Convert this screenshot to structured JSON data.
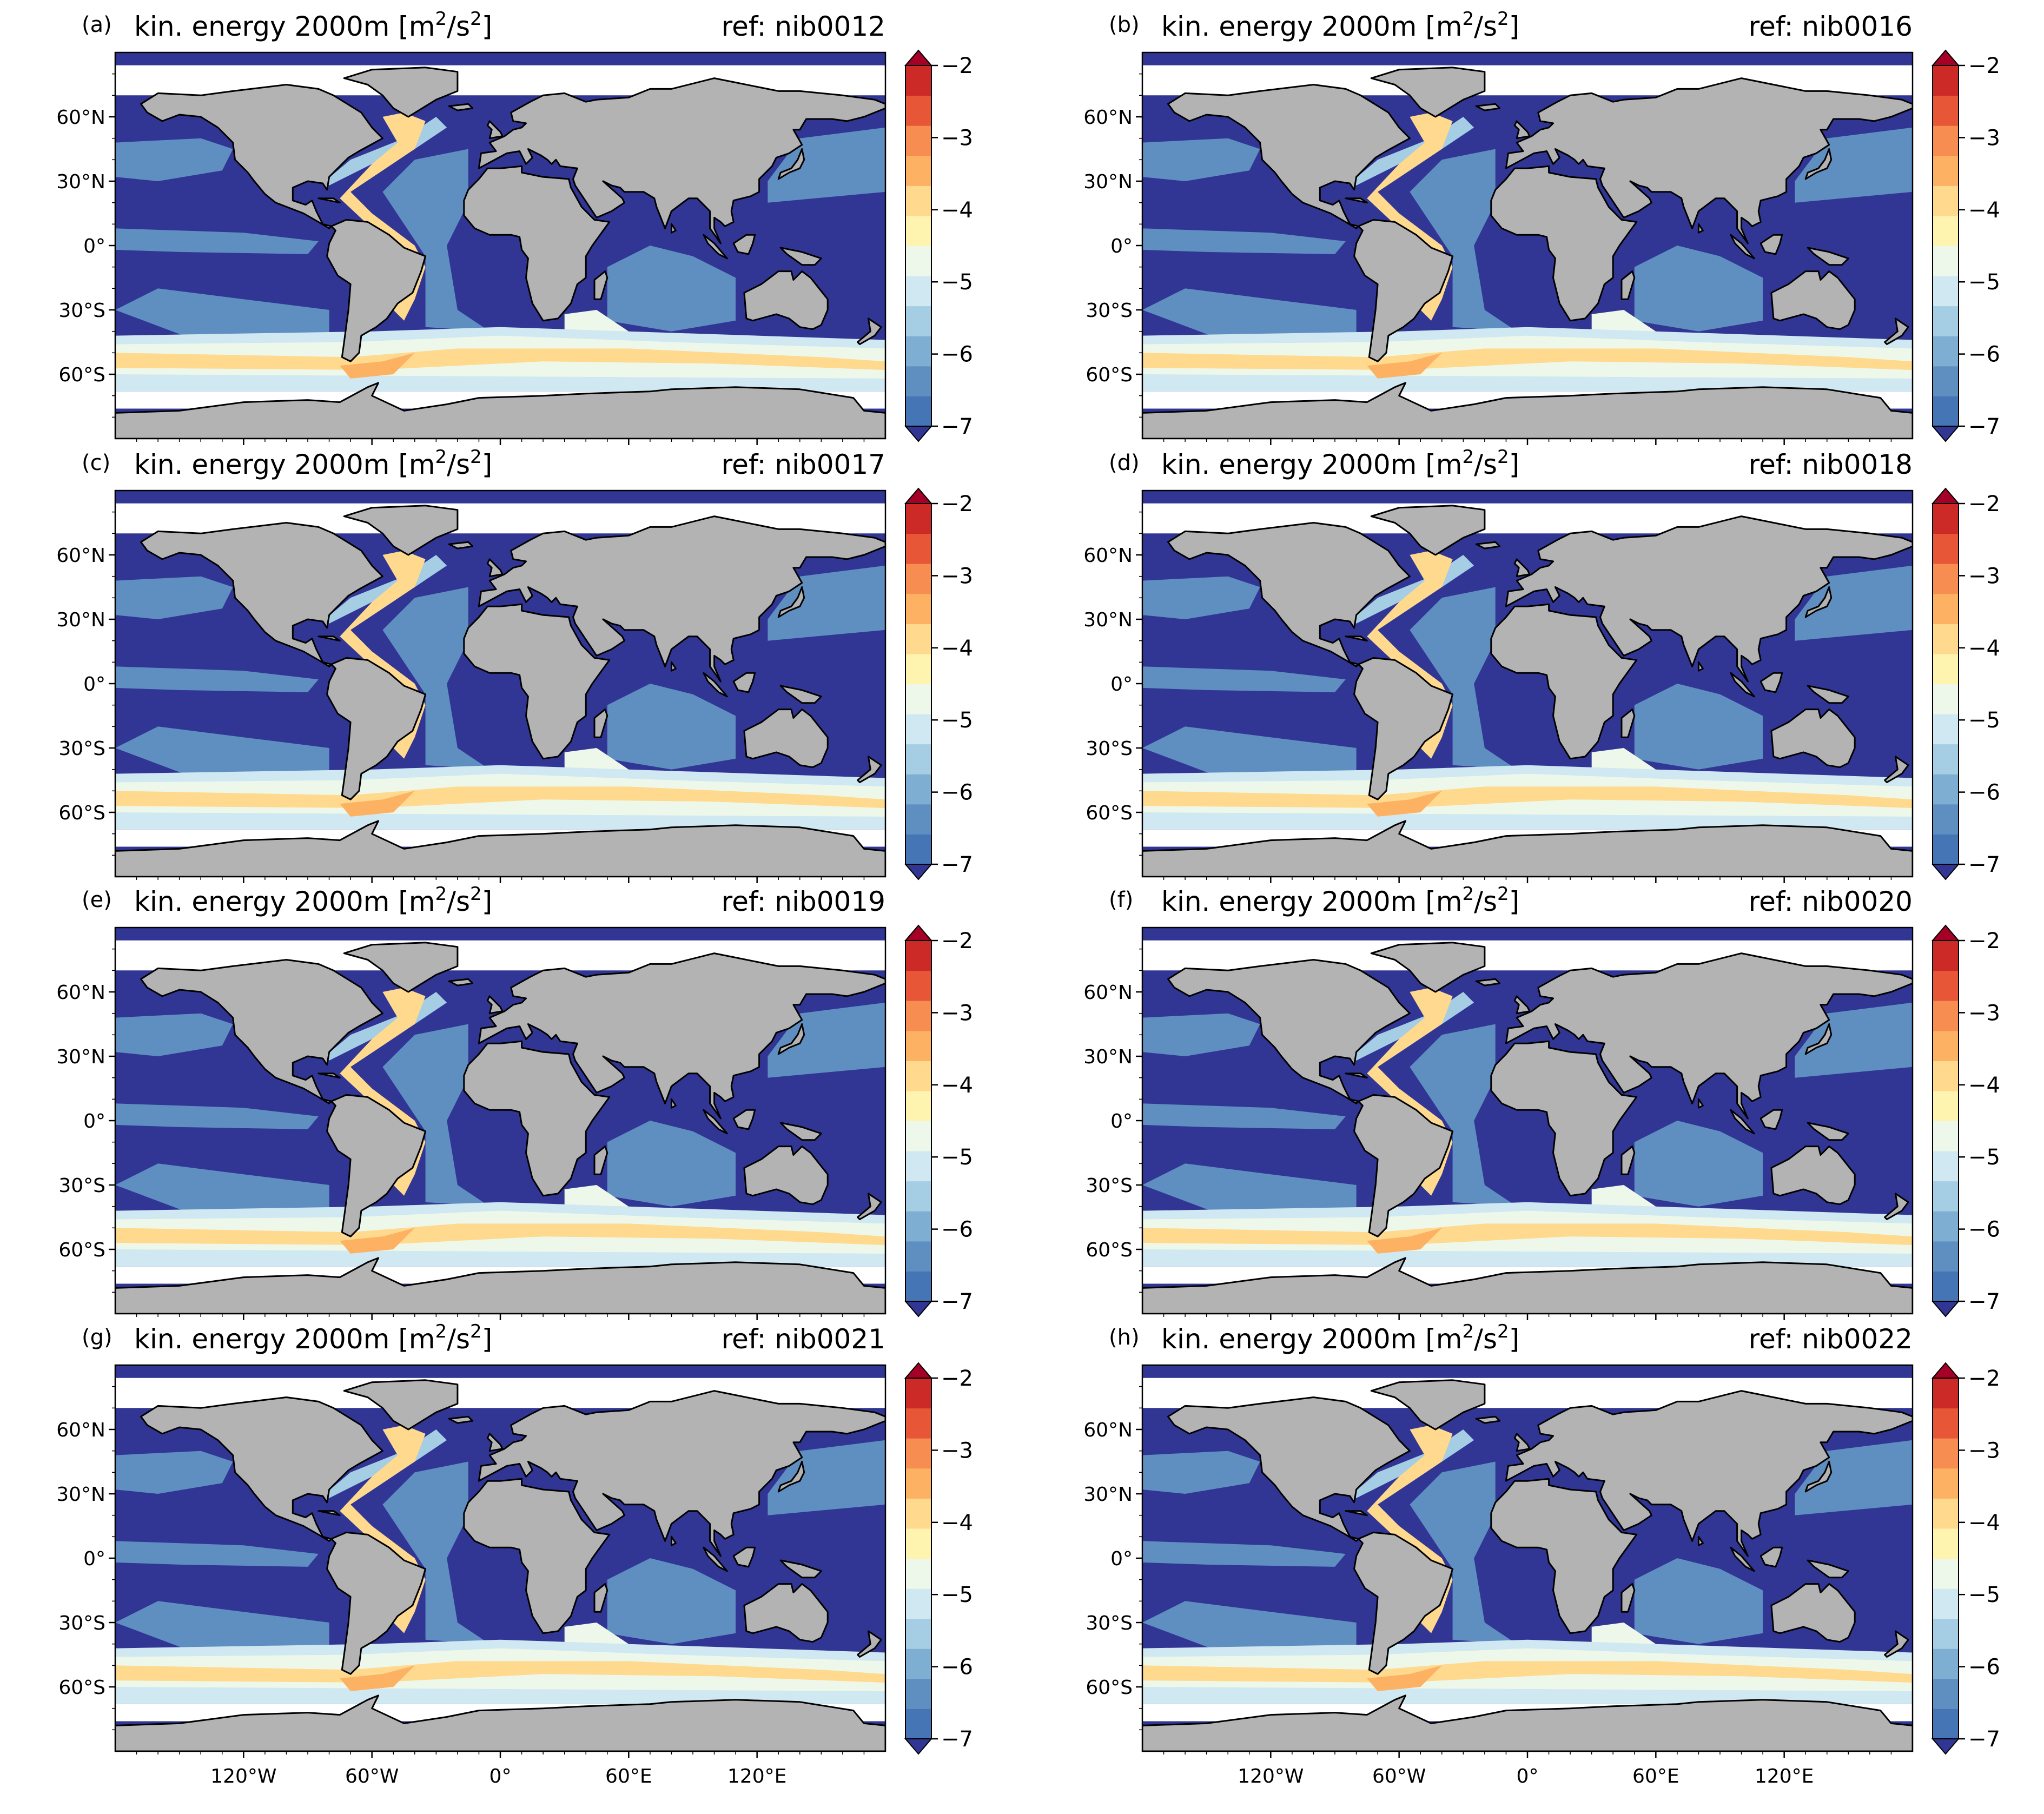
{
  "figure": {
    "panels": [
      {
        "letter": "(a)",
        "ref": "ref: nib0012"
      },
      {
        "letter": "(b)",
        "ref": "ref: nib0016"
      },
      {
        "letter": "(c)",
        "ref": "ref: nib0017"
      },
      {
        "letter": "(d)",
        "ref": "ref: nib0018"
      },
      {
        "letter": "(e)",
        "ref": "ref: nib0019"
      },
      {
        "letter": "(f)",
        "ref": "ref: nib0020"
      },
      {
        "letter": "(g)",
        "ref": "ref: nib0021"
      },
      {
        "letter": "(h)",
        "ref": "ref: nib0022"
      }
    ],
    "title_base": "kin. energy 2000m [m",
    "title_unit_sup1": "2",
    "title_unit_mid": "/s",
    "title_unit_sup2": "2",
    "title_unit_end": "]",
    "lat_ticks": [
      "60°N",
      "30°N",
      "0°",
      "30°S",
      "60°S"
    ],
    "lon_ticks": [
      "120°W",
      "60°W",
      "0°",
      "60°E",
      "120°E"
    ],
    "colorbar": {
      "ticks": [
        "-2",
        "-3",
        "-4",
        "-5",
        "-6",
        "-7"
      ],
      "min": -7,
      "max": -2,
      "step": 0.5,
      "extend": "both",
      "colors": [
        "#4575b4",
        "#5f8fc1",
        "#7faed3",
        "#a5cde3",
        "#cfe8f1",
        "#eef8ea",
        "#fff3b0",
        "#fed98e",
        "#fdb163",
        "#f88d52",
        "#e65637",
        "#cc2a27"
      ],
      "under_color": "#313695",
      "over_color": "#a50026"
    },
    "land_color": "#b3b3b3",
    "coastline_color": "#000000"
  }
}
